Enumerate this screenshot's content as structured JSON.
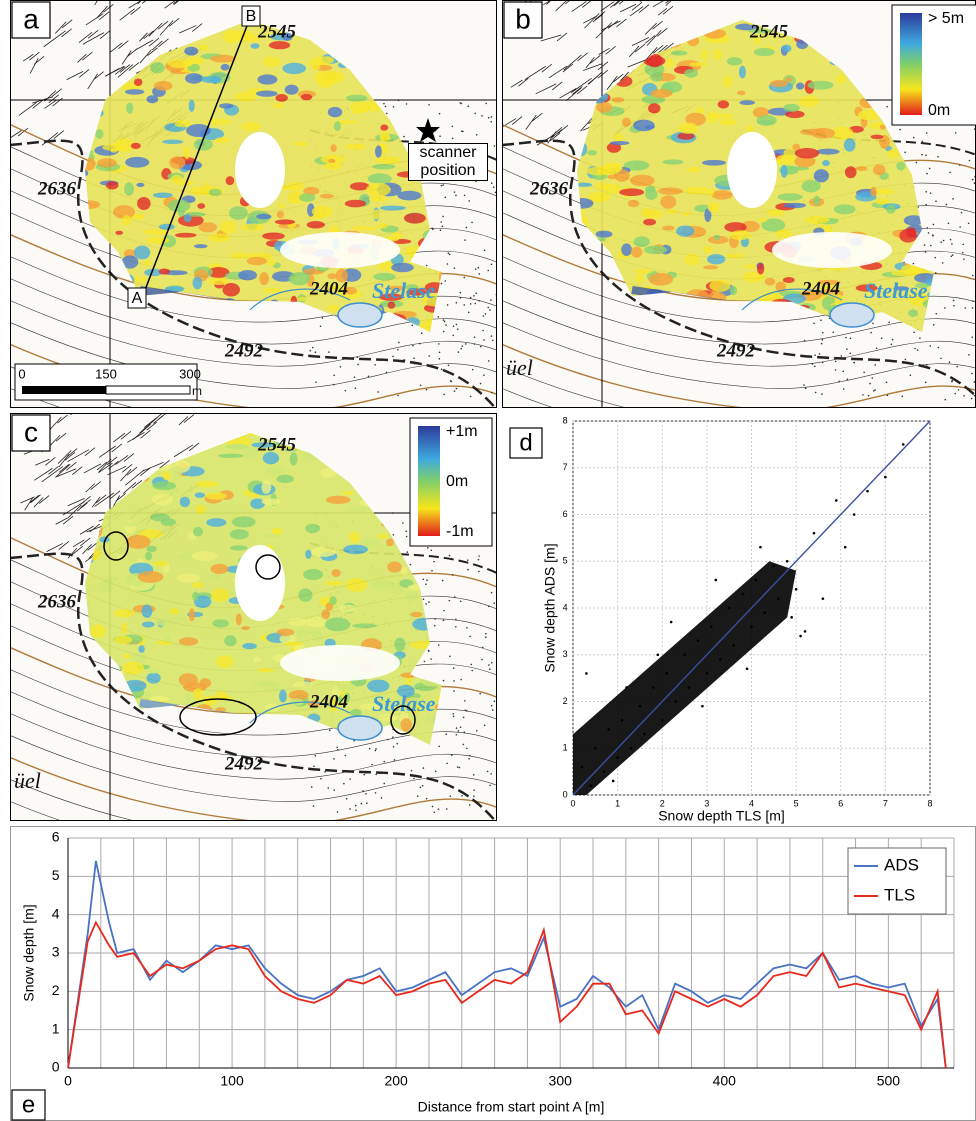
{
  "maps": [
    {
      "letter": "a",
      "elevations": [
        "2545",
        "2636",
        "2404",
        "2492"
      ],
      "lake": "Stelase",
      "scanner": "scanner position",
      "point_a": "A",
      "point_b": "B",
      "scale": {
        "ticks": [
          0,
          150,
          300
        ],
        "unit": "m"
      }
    },
    {
      "letter": "b",
      "elevations": [
        "2545",
        "2636",
        "2404",
        "2492"
      ],
      "lake": "Stelase",
      "place": "üel",
      "legend": [
        "> 5m",
        "0m"
      ]
    },
    {
      "letter": "c",
      "elevations": [
        "2545",
        "2636",
        "2404",
        "2492"
      ],
      "lake": "Stelase",
      "place": "üel",
      "legend": [
        "+1m",
        "0m",
        "-1m"
      ]
    }
  ],
  "chart_data": [
    {
      "type": "scatter",
      "letter": "d",
      "xlabel": "Snow depth TLS [m]",
      "ylabel": "Snow depth ADS [m]",
      "xlim": [
        0,
        8
      ],
      "ylim": [
        0,
        8
      ],
      "xticks": [
        0,
        1,
        2,
        3,
        4,
        5,
        6,
        7,
        8
      ],
      "yticks": [
        0,
        1,
        2,
        3,
        4,
        5,
        6,
        7,
        8
      ],
      "grid": true,
      "color": "#000000",
      "x": [
        0.2,
        0.4,
        0.5,
        0.7,
        0.8,
        1.0,
        1.1,
        1.3,
        1.5,
        1.6,
        1.8,
        2.0,
        2.1,
        2.3,
        2.5,
        2.6,
        2.8,
        3.0,
        3.1,
        3.3,
        3.5,
        3.6,
        3.8,
        4.0,
        4.1,
        4.3,
        4.5,
        4.6,
        4.8,
        5.0,
        5.2,
        5.4,
        5.6,
        5.9,
        6.1,
        6.3,
        6.6,
        7.0,
        7.4,
        0.3,
        1.2,
        2.2,
        3.2,
        4.2,
        5.1,
        0.9,
        1.9,
        2.9,
        3.9,
        4.9
      ],
      "y": [
        0.6,
        0.2,
        1.0,
        0.5,
        1.4,
        0.8,
        1.6,
        1.0,
        1.9,
        1.3,
        2.3,
        1.6,
        2.6,
        2.0,
        3.0,
        2.3,
        3.3,
        2.6,
        3.6,
        2.9,
        4.0,
        3.2,
        4.3,
        3.6,
        4.6,
        3.9,
        4.9,
        4.2,
        5.0,
        4.4,
        3.5,
        5.6,
        4.2,
        6.3,
        5.3,
        6.0,
        6.5,
        6.8,
        7.5,
        2.6,
        2.3,
        3.7,
        4.6,
        5.3,
        3.4,
        0.3,
        3.0,
        1.9,
        2.7,
        3.8
      ],
      "line": {
        "x": [
          0,
          8
        ],
        "y": [
          0,
          8
        ],
        "color": "#3a4fa0"
      }
    },
    {
      "type": "line",
      "letter": "e",
      "xlabel": "Distance from start point A [m]",
      "ylabel": "Snow depth [m]",
      "xlim": [
        0,
        540
      ],
      "ylim": [
        0,
        6
      ],
      "xticks": [
        0,
        100,
        200,
        300,
        400,
        500
      ],
      "yticks": [
        0,
        1,
        2,
        3,
        4,
        5,
        6
      ],
      "xgrid": [
        0,
        20,
        40,
        60,
        80,
        100,
        120,
        140,
        160,
        180,
        200,
        220,
        240,
        260,
        280,
        300,
        320,
        340,
        360,
        380,
        400,
        420,
        440,
        460,
        480,
        500,
        520,
        540
      ],
      "grid": true,
      "legend": "upper right",
      "x": [
        0,
        12,
        17,
        25,
        30,
        40,
        50,
        60,
        70,
        80,
        90,
        100,
        110,
        120,
        130,
        140,
        150,
        160,
        170,
        180,
        190,
        200,
        210,
        220,
        230,
        240,
        250,
        260,
        270,
        280,
        290,
        300,
        310,
        320,
        330,
        340,
        350,
        360,
        370,
        380,
        390,
        400,
        410,
        420,
        430,
        440,
        450,
        460,
        470,
        480,
        490,
        500,
        510,
        520,
        530,
        535
      ],
      "series": [
        {
          "name": "ADS",
          "color": "#4a72c4",
          "values": [
            0,
            3.5,
            5.4,
            3.8,
            3.0,
            3.1,
            2.3,
            2.8,
            2.5,
            2.8,
            3.2,
            3.1,
            3.2,
            2.6,
            2.2,
            1.9,
            1.8,
            2.0,
            2.3,
            2.4,
            2.6,
            2.0,
            2.1,
            2.3,
            2.5,
            1.9,
            2.2,
            2.5,
            2.6,
            2.4,
            3.4,
            1.6,
            1.8,
            2.4,
            2.1,
            1.6,
            1.9,
            1.0,
            2.2,
            2.0,
            1.7,
            1.9,
            1.8,
            2.2,
            2.6,
            2.7,
            2.6,
            3.0,
            2.3,
            2.4,
            2.2,
            2.1,
            2.2,
            1.1,
            1.8,
            0
          ]
        },
        {
          "name": "TLS",
          "color": "#e8281c",
          "values": [
            0,
            3.3,
            3.8,
            3.2,
            2.9,
            3.0,
            2.4,
            2.7,
            2.6,
            2.8,
            3.1,
            3.2,
            3.1,
            2.4,
            2.0,
            1.8,
            1.7,
            1.9,
            2.3,
            2.2,
            2.4,
            1.9,
            2.0,
            2.2,
            2.3,
            1.7,
            2.0,
            2.3,
            2.2,
            2.5,
            3.6,
            1.2,
            1.6,
            2.2,
            2.2,
            1.4,
            1.5,
            0.9,
            2.0,
            1.8,
            1.6,
            1.8,
            1.6,
            1.9,
            2.4,
            2.5,
            2.4,
            3.0,
            2.1,
            2.2,
            2.1,
            2.0,
            1.9,
            1.0,
            2.0,
            0
          ]
        }
      ]
    }
  ]
}
